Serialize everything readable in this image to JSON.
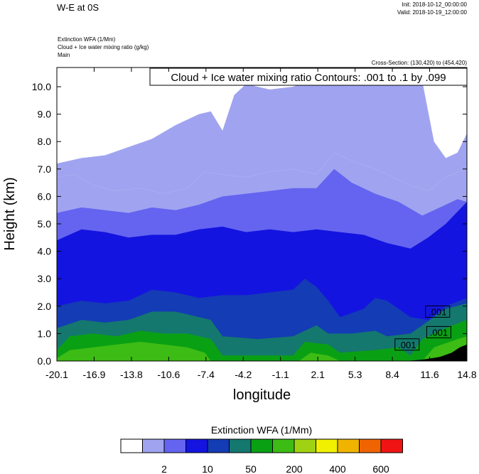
{
  "header": {
    "title": "W-E at 0S",
    "init": "Init: 2018-10-12_00:00:00",
    "valid": "Valid: 2018-10-19_12:00:00",
    "var1": "Extinction WFA   (1/Mm)",
    "var2": "Cloud + Ice water mixing ratio   (g/kg)",
    "var3": "Main",
    "cross_section": "Cross-Section: (130,420) to (454,420)"
  },
  "chart_data": {
    "type": "contour",
    "contour_label": "Cloud + Ice water mixing ratio Contours: .001 to .1 by .099",
    "xlabel": "longitude",
    "ylabel": "Height (km)",
    "xlim": [
      -20.1,
      14.8
    ],
    "ylim": [
      0,
      10.7
    ],
    "x_ticks": [
      "-20.1",
      "-16.9",
      "-13.8",
      "-10.6",
      "-7.4",
      "-4.2",
      "-1.1",
      "2.1",
      "5.3",
      "8.4",
      "11.6",
      "14.8"
    ],
    "y_ticks": [
      "0.0",
      "1.0",
      "2.0",
      "3.0",
      "4.0",
      "5.0",
      "6.0",
      "7.0",
      "8.0",
      "9.0",
      "10.0"
    ],
    "contour_values": [
      ".001",
      ".001",
      ".001"
    ],
    "colorbar": {
      "title": "Extinction WFA  (1/Mm)",
      "labels": [
        "2",
        "10",
        "50",
        "200",
        "400",
        "600"
      ],
      "colors": [
        "#ffffff",
        "#a0a4f0",
        "#6464f0",
        "#1414e0",
        "#143cb4",
        "#14786e",
        "#0aa014",
        "#3cbc14",
        "#a0d214",
        "#f0f000",
        "#f0b400",
        "#f06400",
        "#f01414"
      ]
    },
    "layers": [
      {
        "name": "low-blue",
        "color": "#6464f0",
        "top": [
          [
            -20.1,
            5.4
          ],
          [
            -18,
            5.6
          ],
          [
            -16,
            5.5
          ],
          [
            -14,
            5.4
          ],
          [
            -12,
            5.6
          ],
          [
            -10,
            5.5
          ],
          [
            -8,
            5.7
          ],
          [
            -6,
            6.0
          ],
          [
            -4,
            6.1
          ],
          [
            -2,
            6.2
          ],
          [
            0,
            6.3
          ],
          [
            2,
            6.3
          ],
          [
            3.5,
            7.0
          ],
          [
            5,
            6.5
          ],
          [
            7,
            6.1
          ],
          [
            9,
            5.8
          ],
          [
            11,
            5.3
          ],
          [
            12.5,
            5.6
          ],
          [
            14,
            5.9
          ],
          [
            14.8,
            5.8
          ]
        ]
      },
      {
        "name": "medium-blue",
        "color": "#1414e0",
        "top": [
          [
            -20.1,
            4.4
          ],
          [
            -18,
            4.8
          ],
          [
            -16,
            4.7
          ],
          [
            -14,
            4.5
          ],
          [
            -12,
            4.6
          ],
          [
            -10,
            4.6
          ],
          [
            -8,
            4.8
          ],
          [
            -6,
            4.9
          ],
          [
            -4,
            4.7
          ],
          [
            -2,
            4.8
          ],
          [
            0,
            4.7
          ],
          [
            2,
            4.8
          ],
          [
            4,
            4.7
          ],
          [
            6,
            4.6
          ],
          [
            8,
            4.3
          ],
          [
            10,
            4.1
          ],
          [
            11.5,
            4.5
          ],
          [
            13,
            5.0
          ],
          [
            14.8,
            5.8
          ]
        ]
      },
      {
        "name": "dark-blue",
        "color": "#143cb4",
        "top": [
          [
            -20.1,
            2.0
          ],
          [
            -18,
            2.2
          ],
          [
            -16,
            2.1
          ],
          [
            -14,
            2.2
          ],
          [
            -12,
            2.6
          ],
          [
            -10,
            2.5
          ],
          [
            -8,
            2.3
          ],
          [
            -6,
            2.4
          ],
          [
            -4,
            2.4
          ],
          [
            -2,
            2.5
          ],
          [
            0,
            2.6
          ],
          [
            1,
            3.0
          ],
          [
            2,
            2.7
          ],
          [
            3,
            2.2
          ],
          [
            4,
            1.6
          ],
          [
            6,
            1.9
          ],
          [
            7,
            2.3
          ],
          [
            8,
            2.2
          ],
          [
            9,
            1.9
          ],
          [
            10,
            1.6
          ],
          [
            11.5,
            1.5
          ],
          [
            13,
            2.0
          ],
          [
            14.8,
            2.3
          ]
        ]
      },
      {
        "name": "teal",
        "color": "#14786e",
        "top": [
          [
            -20.1,
            1.2
          ],
          [
            -18,
            1.5
          ],
          [
            -16,
            1.4
          ],
          [
            -14,
            1.5
          ],
          [
            -12,
            1.8
          ],
          [
            -10,
            1.8
          ],
          [
            -8,
            1.6
          ],
          [
            -7,
            1.5
          ],
          [
            -6,
            0.9
          ],
          [
            -3,
            0.8
          ],
          [
            0,
            0.9
          ],
          [
            1,
            1.1
          ],
          [
            2,
            1.3
          ],
          [
            3,
            1.0
          ],
          [
            5,
            1.0
          ],
          [
            7,
            1.1
          ],
          [
            8,
            0.9
          ],
          [
            10,
            1.0
          ],
          [
            11,
            1.3
          ],
          [
            12,
            1.6
          ],
          [
            13,
            1.9
          ],
          [
            14.8,
            2.1
          ]
        ]
      },
      {
        "name": "green",
        "color": "#0aa014",
        "top": [
          [
            -20.1,
            0.4
          ],
          [
            -19,
            0.9
          ],
          [
            -17,
            1.0
          ],
          [
            -15,
            0.9
          ],
          [
            -13,
            1.1
          ],
          [
            -11,
            1.0
          ],
          [
            -9,
            1.0
          ],
          [
            -7,
            0.8
          ],
          [
            -6,
            0.2
          ],
          [
            0,
            0.2
          ],
          [
            1,
            0.7
          ],
          [
            3,
            0.6
          ],
          [
            4,
            0.3
          ],
          [
            7,
            0.4
          ],
          [
            9,
            0.5
          ],
          [
            10,
            0.2
          ],
          [
            11,
            0.8
          ],
          [
            13,
            1.2
          ],
          [
            14.8,
            1.5
          ]
        ]
      },
      {
        "name": "light-green",
        "color": "#3cbc14",
        "top": [
          [
            -20.1,
            0.1
          ],
          [
            -19,
            0.4
          ],
          [
            -17,
            0.5
          ],
          [
            -15,
            0.6
          ],
          [
            -13,
            0.7
          ],
          [
            -11,
            0.6
          ],
          [
            -9,
            0.5
          ],
          [
            -7.5,
            0.3
          ],
          [
            -7,
            0.0
          ],
          [
            0.5,
            0.0
          ],
          [
            1.5,
            0.3
          ],
          [
            3,
            0.2
          ],
          [
            4,
            0.0
          ],
          [
            11,
            0.0
          ],
          [
            12,
            0.5
          ],
          [
            14,
            0.8
          ],
          [
            14.8,
            0.9
          ]
        ]
      }
    ],
    "upper_cloud": {
      "color": "#a0a4f0",
      "bottom": [
        [
          -20.1,
          6.7
        ],
        [
          -18.5,
          6.8
        ],
        [
          -17,
          6.4
        ],
        [
          -15,
          6.2
        ],
        [
          -13,
          6.3
        ],
        [
          -11,
          6.1
        ],
        [
          -9,
          6.3
        ],
        [
          -7.5,
          6.9
        ],
        [
          -6,
          6.8
        ],
        [
          -4,
          6.7
        ],
        [
          -2,
          6.9
        ],
        [
          0,
          7.0
        ],
        [
          2,
          6.8
        ],
        [
          3.5,
          7.6
        ],
        [
          5,
          7.3
        ],
        [
          7,
          7.0
        ],
        [
          8.5,
          6.7
        ],
        [
          10,
          6.4
        ],
        [
          11.5,
          6.2
        ],
        [
          13,
          6.7
        ],
        [
          14.8,
          7.0
        ]
      ],
      "top": [
        [
          14.8,
          8.3
        ],
        [
          14,
          7.6
        ],
        [
          13,
          7.4
        ],
        [
          12,
          8.0
        ],
        [
          11,
          10.2
        ],
        [
          10,
          10.3
        ],
        [
          8,
          10.4
        ],
        [
          6,
          10.5
        ],
        [
          4,
          10.5
        ],
        [
          2,
          10.3
        ],
        [
          0,
          10.0
        ],
        [
          -2,
          9.9
        ],
        [
          -4,
          10.1
        ],
        [
          -5,
          9.7
        ],
        [
          -6,
          8.4
        ],
        [
          -7,
          9.1
        ],
        [
          -8,
          9.0
        ],
        [
          -10,
          8.6
        ],
        [
          -12,
          8.1
        ],
        [
          -14,
          7.8
        ],
        [
          -16,
          7.5
        ],
        [
          -18,
          7.4
        ],
        [
          -20.1,
          7.2
        ]
      ]
    },
    "ground": [
      [
        9.5,
        0.0
      ],
      [
        11,
        0.05
      ],
      [
        12.5,
        0.15
      ],
      [
        13.5,
        0.3
      ],
      [
        14.2,
        0.5
      ],
      [
        14.8,
        0.6
      ],
      [
        14.8,
        0.0
      ]
    ],
    "contour_boxes": [
      [
        8.8,
        0.55
      ],
      [
        11.4,
        1.75
      ],
      [
        11.5,
        1.0
      ]
    ]
  }
}
